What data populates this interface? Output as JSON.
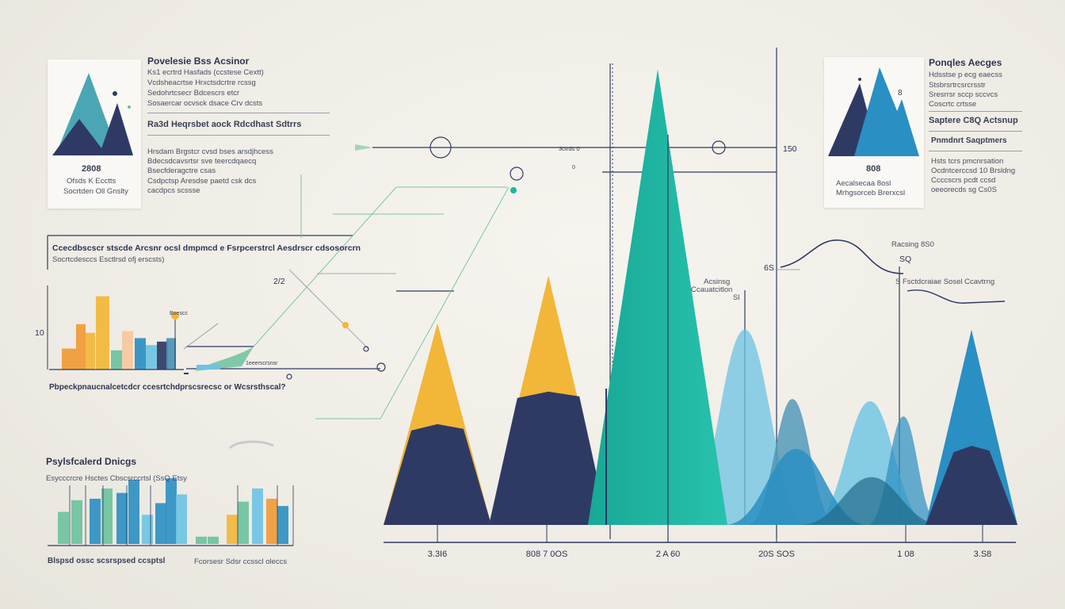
{
  "colors": {
    "navy": "#2f3a64",
    "yellow": "#f2b638",
    "teal": "#1fb5a3",
    "sky": "#6cc3e3",
    "blue": "#2a8fc2",
    "steel": "#4b93b5",
    "green": "#6cc29c",
    "orange": "#f09a35"
  },
  "left_panel": {
    "title": "Povelesie Bss Acsinor",
    "lines": [
      "Ks1 ecrtrd Hasfads (ccstese Cextt)",
      "Vcdsheacrtse Hrxctsdcrtre rcssg",
      "Sedohrtcsecr Bdcescrs etcr",
      "Sosaercar ocvsck dsace Crv dcsts"
    ],
    "subtitle": "Ra3d Heqrsbet aock Rdcdhast Sdtrrs",
    "sub_lines": [
      "Hrsdam Brgstcr cvsd bses arsdjhcess",
      "Bdecsdcavsrtsr sve teercdqaecq",
      "Bsecfderagctre csas",
      "Csdpctsp Aresdse paetd csk dcs",
      "cacdpcs scssse"
    ],
    "thumb_value": "2808",
    "thumb_caption": [
      "Ofsds K Ecctts",
      "Socrtden Oll Gnslty"
    ]
  },
  "right_panel": {
    "title": "Ponqles Aecges",
    "lines": [
      "Hdsstse p ecg eaecss",
      "Stsbrsrtrcsrcrsstr",
      "Sresrrsr sccp sccvcs",
      "Coscrtc crtsse"
    ],
    "subtitle": "Saptere C8Q Actsnup",
    "subtitle2": "Pnmdnrt Saqptmers",
    "sub_lines": [
      "Hsts tcrs pmcnrsation",
      "Ocdntcerccsd 10 Brsldng",
      "Ccccscrs pcdt ccsd",
      "oeeorecds sg Cs0S"
    ],
    "thumb_value": "808",
    "thumb_caption": [
      "Aecalsecaa 8osl",
      "Mrhgsorceb Brerxcsl"
    ],
    "thumb_digit": "8"
  },
  "callout": {
    "title": "Ccecdbscscr stscde Arcsnr ocsl dmpmcd e Fsrpcerstrcl Aesdrscr cdsosorcrn",
    "subtitle": "Socrtcdesccs Esctlrsd ofj erscsts)",
    "value": "2/2",
    "caption": "Pbpeckpnaucnalcetcdcr ccesrtchdprscsrecsc or Wcsrsthscal?"
  },
  "mini_ticks": {
    "ten": "10",
    "arrow_label": "1eeerscrsnsr",
    "icon_label": "Boescc",
    "node_label": "3ctrds 0",
    "left_value": "0"
  },
  "bottom_panel": {
    "title": "Psylsfcalerd Dnicgs",
    "subtitle": "Esycccrcre Hsctes Cbscsrccrtsl (SsQ Etsy",
    "caption_left": "Blspsd ossc scsrspsed ccsptsl",
    "caption_right": "Fcorsesr Sdsr ccsscl oleccs"
  },
  "annotations": {
    "right_value": "150",
    "marker_value": "6S",
    "wave_label": "Racsing 8S0",
    "wave_value": "SQ",
    "series_note": "S Fsctdcraiae Sosel Ccavtrng",
    "peak_label": "Acsinsg",
    "peak_label2": "Ccauatcitlon",
    "peak_label3": "Sl"
  },
  "chart_data": [
    {
      "type": "area",
      "title": "",
      "categories": [
        "3.3I6",
        "808 7 0OS",
        "2 A 60",
        "20S SOS",
        "1 08",
        "3.S8"
      ],
      "series": [
        {
          "color": "#2f3a64",
          "values": [
            45,
            60,
            0,
            0,
            0,
            35
          ]
        },
        {
          "color": "#f2b638",
          "values": [
            93,
            115,
            0,
            0,
            0,
            0
          ]
        },
        {
          "color": "#1fb5a3",
          "values": [
            0,
            0,
            210,
            0,
            0,
            0
          ]
        },
        {
          "color": "#6cc3e3",
          "values": [
            0,
            0,
            0,
            70,
            40,
            0
          ]
        },
        {
          "color": "#2a8fc2",
          "values": [
            0,
            0,
            0,
            0,
            0,
            90
          ]
        }
      ],
      "ylim": [
        0,
        220
      ],
      "grid": false
    },
    {
      "type": "bar",
      "title": "Ccecdbscscr stscde Arcsnr ocsl dmpmcd e Fsrpcerstrcl Aesdrscr cdsosorcrn",
      "values": [
        1.2,
        2.6,
        2.1,
        4.2,
        1.1,
        2.2,
        1.8,
        1.4,
        1.6,
        1.8
      ],
      "colors": [
        "#f09a35",
        "#f09a35",
        "#f2b638",
        "#f2b638",
        "#6cc29c",
        "#f6c7a0",
        "#2a8fc2",
        "#6cc3e3",
        "#2f3a64",
        "#4b93b5"
      ],
      "ylim": [
        0,
        5
      ]
    },
    {
      "type": "bar",
      "title": "Psylsfcalerd Dnicgs",
      "values": [
        2.2,
        3.0,
        3.1,
        3.8,
        3.5,
        4.4,
        2.0,
        2.8,
        4.5,
        3.4,
        0.5,
        0.5,
        2.0,
        2.9,
        3.8,
        3.1,
        2.6
      ],
      "colors": [
        "#6cc29c",
        "#6cc29c",
        "#2a8fc2",
        "#6cc29c",
        "#2a8fc2",
        "#2a8fc2",
        "#6cc3e3",
        "#2a8fc2",
        "#2a8fc2",
        "#6cc3e3",
        "#6cc29c",
        "#6cc29c",
        "#f2b638",
        "#6cc29c",
        "#6cc3e3",
        "#f09a35",
        "#2a8fc2"
      ],
      "ylim": [
        0,
        5
      ]
    }
  ]
}
